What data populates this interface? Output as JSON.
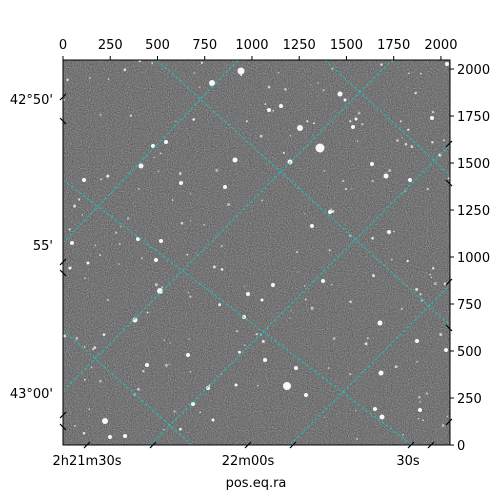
{
  "figure": {
    "xlabel": "pos.eq.ra",
    "pixel_axis_top": {
      "ticks": [
        0,
        250,
        500,
        750,
        1000,
        1250,
        1500,
        1750,
        2000
      ],
      "labels": [
        "0",
        "250",
        "500",
        "750",
        "1000",
        "1250",
        "1500",
        "1750",
        "2000"
      ]
    },
    "pixel_axis_right": {
      "ticks": [
        0,
        250,
        500,
        750,
        1000,
        1250,
        1500,
        1750,
        2000
      ],
      "labels": [
        "0",
        "250",
        "500",
        "750",
        "1000",
        "1250",
        "1500",
        "1750",
        "2000"
      ]
    },
    "dec_axis_left": {
      "labels": [
        "42°50'",
        "55'",
        "43°00'"
      ]
    },
    "ra_axis_bottom": {
      "labels": [
        "2h21m30s",
        "22m00s",
        "30s"
      ]
    },
    "image_range": {
      "x": [
        0,
        2048
      ],
      "y": [
        0,
        2048
      ]
    },
    "grid_color": "#17c5c5",
    "image_style": "grayscale star field"
  }
}
